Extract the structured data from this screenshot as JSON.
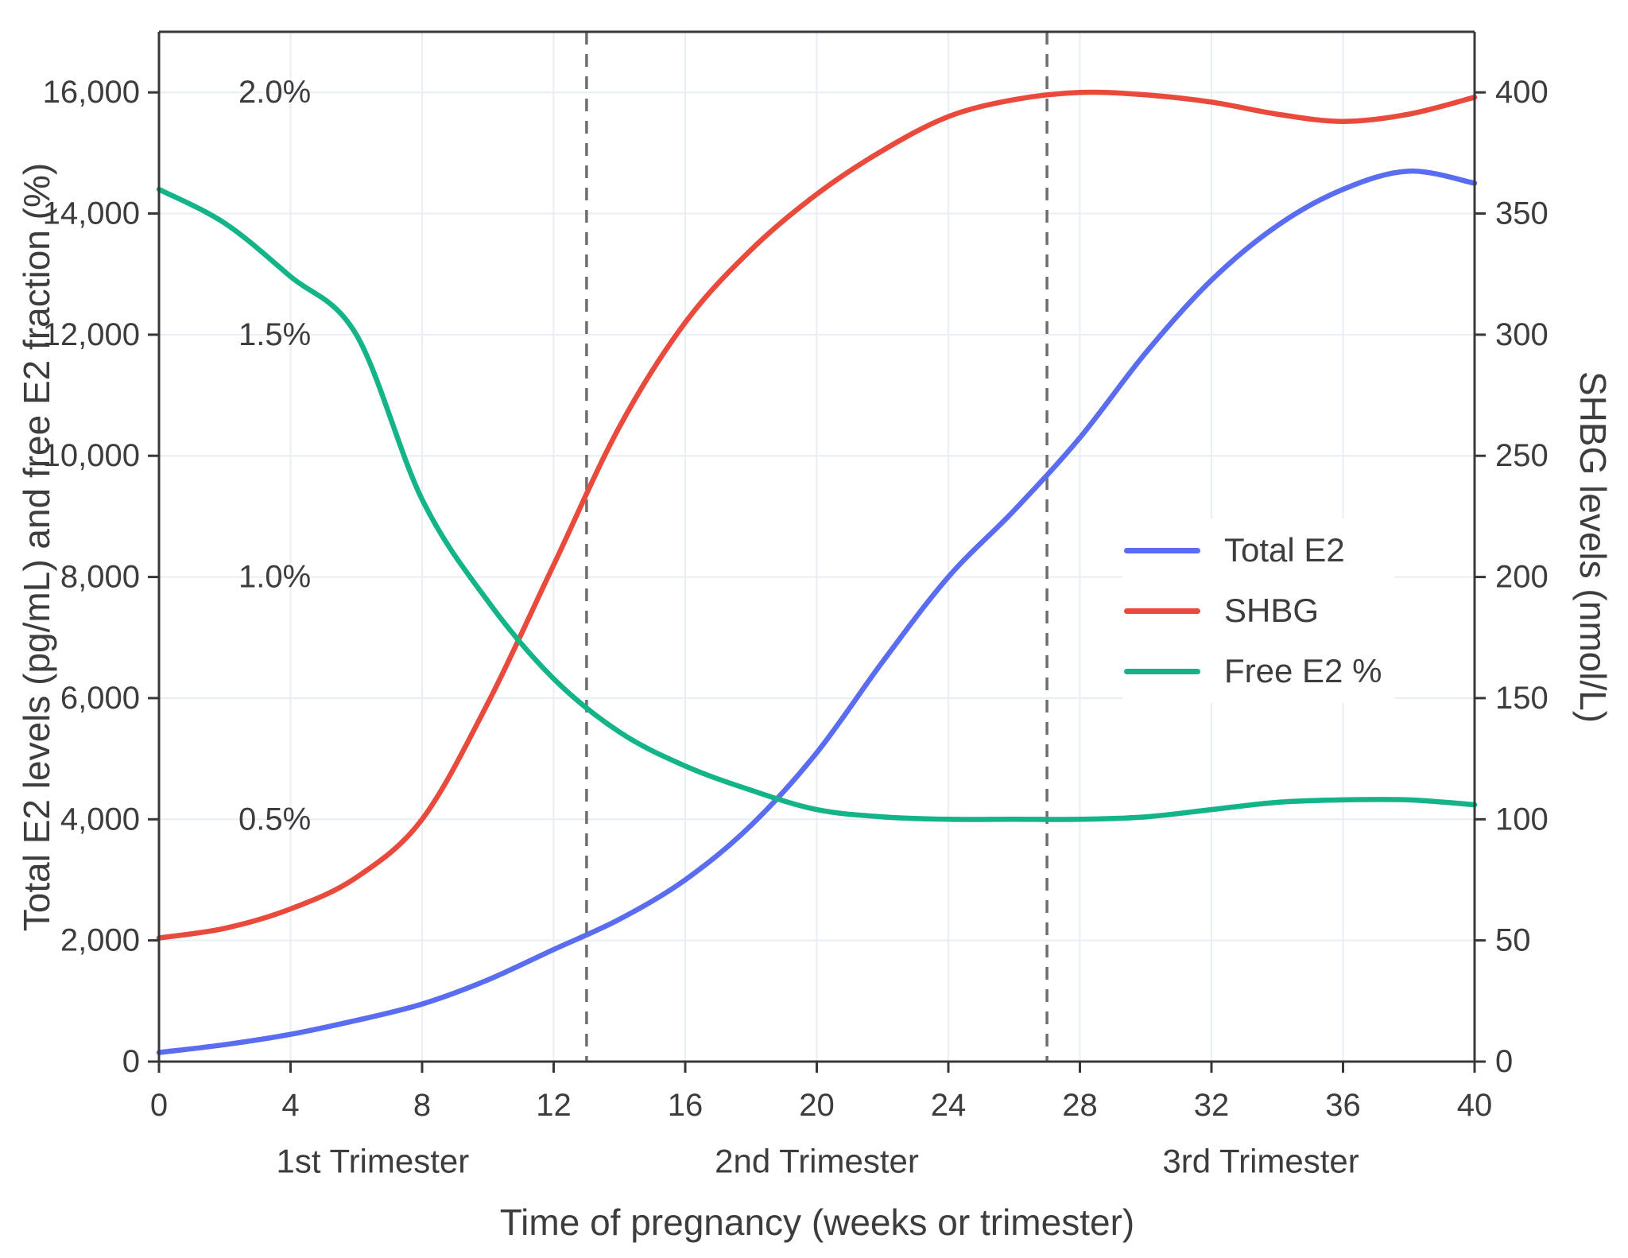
{
  "chart_data": {
    "type": "line",
    "title": "",
    "xlabel": "Time of pregnancy (weeks or trimester)",
    "ylabel_left": "Total E2 levels (pg/mL) and free E2 fraction (%)",
    "ylabel_right": "SHBG levels (nmol/L)",
    "xlim": [
      0,
      40
    ],
    "ylim_left": [
      0,
      17000
    ],
    "ylim_right": [
      0,
      425
    ],
    "grid": true,
    "legend_position": "center-right",
    "percent_scale": {
      "percent": 2.0,
      "left_value": 16000
    },
    "x_weeks": [
      0,
      2,
      4,
      6,
      8,
      10,
      12,
      14,
      16,
      18,
      20,
      22,
      24,
      26,
      28,
      30,
      32,
      34,
      36,
      38,
      40
    ],
    "series": [
      {
        "name": "Total E2",
        "axis": "left",
        "unit": "pg/mL",
        "color": "#5a6cf0",
        "values": [
          150,
          280,
          450,
          680,
          950,
          1350,
          1850,
          2350,
          3000,
          3900,
          5100,
          6600,
          8000,
          9100,
          10300,
          11700,
          12900,
          13800,
          14400,
          14700,
          14500
        ]
      },
      {
        "name": "SHBG",
        "axis": "right",
        "unit": "nmol/L",
        "color": "#e94a3c",
        "values": [
          51,
          55,
          63,
          76,
          100,
          148,
          205,
          262,
          305,
          335,
          358,
          376,
          390,
          397,
          400,
          399,
          396,
          391,
          388,
          391,
          398
        ]
      },
      {
        "name": "Free E2 %",
        "axis": "left_percent",
        "unit": "%",
        "color": "#12b488",
        "values": [
          1.8,
          1.73,
          1.62,
          1.5,
          1.16,
          0.95,
          0.79,
          0.68,
          0.61,
          0.56,
          0.52,
          0.505,
          0.5,
          0.5,
          0.5,
          0.505,
          0.52,
          0.535,
          0.54,
          0.54,
          0.53
        ]
      }
    ],
    "left_ticks": [
      {
        "label": "0",
        "value": 0
      },
      {
        "label": "2,000",
        "value": 2000
      },
      {
        "label": "4,000",
        "value": 4000
      },
      {
        "label": "6,000",
        "value": 6000
      },
      {
        "label": "8,000",
        "value": 8000
      },
      {
        "label": "10,000",
        "value": 10000
      },
      {
        "label": "12,000",
        "value": 12000
      },
      {
        "label": "14,000",
        "value": 14000
      },
      {
        "label": "16,000",
        "value": 16000
      }
    ],
    "right_ticks": [
      {
        "label": "0",
        "value": 0
      },
      {
        "label": "50",
        "value": 50
      },
      {
        "label": "100",
        "value": 100
      },
      {
        "label": "150",
        "value": 150
      },
      {
        "label": "200",
        "value": 200
      },
      {
        "label": "250",
        "value": 250
      },
      {
        "label": "300",
        "value": 300
      },
      {
        "label": "350",
        "value": 350
      },
      {
        "label": "400",
        "value": 400
      }
    ],
    "x_ticks": [
      {
        "label": "0",
        "value": 0
      },
      {
        "label": "4",
        "value": 4
      },
      {
        "label": "8",
        "value": 8
      },
      {
        "label": "12",
        "value": 12
      },
      {
        "label": "16",
        "value": 16
      },
      {
        "label": "20",
        "value": 20
      },
      {
        "label": "24",
        "value": 24
      },
      {
        "label": "28",
        "value": 28
      },
      {
        "label": "32",
        "value": 32
      },
      {
        "label": "36",
        "value": 36
      },
      {
        "label": "40",
        "value": 40
      }
    ],
    "percent_labels": [
      {
        "label": "0.5%",
        "value": 4000
      },
      {
        "label": "1.0%",
        "value": 8000
      },
      {
        "label": "1.5%",
        "value": 12000
      },
      {
        "label": "2.0%",
        "value": 16000
      }
    ],
    "trimesters": [
      {
        "label": "1st Trimester",
        "start": 0,
        "end": 13
      },
      {
        "label": "2nd Trimester",
        "start": 13,
        "end": 27
      },
      {
        "label": "3rd Trimester",
        "start": 27,
        "end": 40
      }
    ],
    "trimester_dividers": [
      13,
      27
    ],
    "colors": {
      "grid": "#e9edf4",
      "spine": "#383838",
      "text": "#3d3d3d",
      "divider": "#6e6e6e"
    }
  }
}
